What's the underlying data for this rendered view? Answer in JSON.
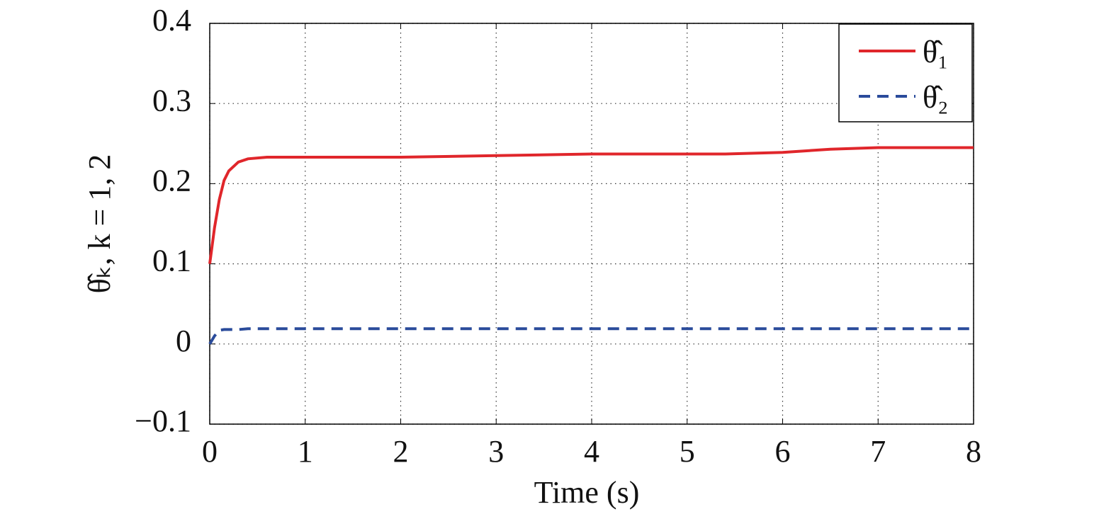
{
  "chart_data": {
    "type": "line",
    "xlabel": "Time (s)",
    "ylabel": "θ̂ₖ, k = 1, 2",
    "x": [
      0,
      0.05,
      0.1,
      0.15,
      0.2,
      0.3,
      0.4,
      0.6,
      1,
      2,
      3,
      4,
      5,
      5.4,
      6,
      6.5,
      7,
      7.5,
      8
    ],
    "series": [
      {
        "name": "θ̂₁",
        "color": "#e0262b",
        "linestyle": "solid",
        "values": [
          0.1,
          0.145,
          0.18,
          0.204,
          0.216,
          0.227,
          0.231,
          0.233,
          0.233,
          0.233,
          0.235,
          0.237,
          0.237,
          0.237,
          0.239,
          0.243,
          0.245,
          0.245,
          0.245
        ]
      },
      {
        "name": "θ̂₂",
        "color": "#2a4b9b",
        "linestyle": "dashed",
        "values": [
          0,
          0.01,
          0.017,
          0.018,
          0.018,
          0.018,
          0.019,
          0.019,
          0.019,
          0.019,
          0.019,
          0.019,
          0.019,
          0.019,
          0.019,
          0.019,
          0.019,
          0.019,
          0.019
        ]
      }
    ],
    "xlim": [
      0,
      8
    ],
    "xticks": [
      0,
      1,
      2,
      3,
      4,
      5,
      6,
      7,
      8
    ],
    "ylim": [
      -0.1,
      0.4
    ],
    "yticks": [
      {
        "value": -0.1,
        "label": "−0.1"
      },
      0,
      0.1,
      0.2,
      0.3,
      0.4
    ],
    "grid": true,
    "legend": "upper right"
  }
}
